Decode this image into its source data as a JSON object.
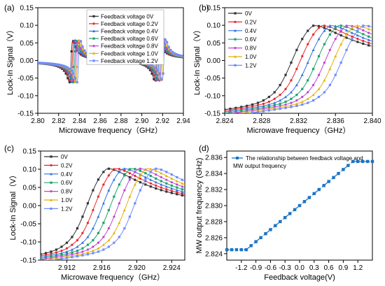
{
  "panel_labels": [
    "(a)",
    "(b)",
    "(c)",
    "(d)"
  ],
  "colors": [
    "#333333",
    "#e8262b",
    "#2f6fe0",
    "#21a36b",
    "#c044d6",
    "#e8b100",
    "#6e8cff"
  ],
  "chart_data": [
    {
      "type": "line",
      "id": "a",
      "title": "",
      "xlabel": "Microwave frequency（GHz）",
      "ylabel": "Lock-In Signal（V）",
      "xlim": [
        2.8,
        2.94
      ],
      "ylim": [
        -0.15,
        0.15
      ],
      "xticks": [
        "2.80",
        "2.82",
        "2.84",
        "2.86",
        "2.88",
        "2.90",
        "2.92",
        "2.94"
      ],
      "yticks": [
        "-0.15",
        "-0.10",
        "-0.05",
        "0.00",
        "0.05",
        "0.10",
        "0.15"
      ],
      "legend": "top-center",
      "base_resonances": [
        2.832,
        2.914
      ],
      "shift_per_step_ghz": 0.0012,
      "amplitude": 0.12,
      "series": [
        {
          "name": "Feedback voltage 0V"
        },
        {
          "name": "Feedback voltage 0.2V"
        },
        {
          "name": "Feedback voltage 0.4V"
        },
        {
          "name": "Feedback voltage 0.6V"
        },
        {
          "name": "Feedback voltage 0.8V"
        },
        {
          "name": "Feedback voltage 1.0V"
        },
        {
          "name": "Feedback voltage 1.2V"
        }
      ]
    },
    {
      "type": "line",
      "id": "b",
      "title": "",
      "xlabel": "Microwave frequency（GHz）",
      "ylabel": "Lock-In Signal（V）",
      "xlim": [
        2.824,
        2.84
      ],
      "ylim": [
        -0.15,
        0.15
      ],
      "xticks": [
        "2.824",
        "2.828",
        "2.832",
        "2.836",
        "2.840"
      ],
      "yticks": [
        "-0.15",
        "-0.10",
        "-0.05",
        "0.00",
        "0.05",
        "0.10",
        "0.15"
      ],
      "legend": "top-left",
      "center_0v": 2.8313,
      "shift_per_step_ghz": 0.0009,
      "amplitude": 0.122,
      "series": [
        {
          "name": "0V"
        },
        {
          "name": "0.2V"
        },
        {
          "name": "0.4V"
        },
        {
          "name": "0.6V"
        },
        {
          "name": "0.8V"
        },
        {
          "name": "1.0V"
        },
        {
          "name": "1.2V"
        }
      ]
    },
    {
      "type": "line",
      "id": "c",
      "title": "",
      "xlabel": "Microwave frequency（GHz）",
      "ylabel": "Lock-In Signal（V）",
      "xlim": [
        2.909,
        2.9255
      ],
      "ylim": [
        -0.15,
        0.15
      ],
      "xticks": [
        "2.912",
        "2.916",
        "2.920",
        "2.924"
      ],
      "yticks": [
        "-0.15",
        "-0.10",
        "-0.05",
        "0.00",
        "0.05",
        "0.10",
        "0.15"
      ],
      "legend": "top-left",
      "center_0v": 2.9143,
      "shift_per_step_ghz": 0.0009,
      "amplitude": 0.125,
      "series": [
        {
          "name": "0V"
        },
        {
          "name": "0.2V"
        },
        {
          "name": "0.4V"
        },
        {
          "name": "0.6V"
        },
        {
          "name": "0.8V"
        },
        {
          "name": "1.0V"
        },
        {
          "name": "1.2V"
        }
      ]
    },
    {
      "type": "line",
      "id": "d",
      "title": "",
      "xlabel": "Feedback voltage(V)",
      "ylabel": "MW output frequency (GHz)",
      "xlim": [
        -1.5,
        1.5
      ],
      "ylim": [
        2.8232,
        2.8368
      ],
      "xticks": [
        "-1.2",
        "-0.9",
        "-0.6",
        "-0.3",
        "0.0",
        "0.3",
        "0.6",
        "0.9",
        "1.2"
      ],
      "yticks": [
        "2.824",
        "2.826",
        "2.828",
        "2.830",
        "2.832",
        "2.834",
        "2.836"
      ],
      "legend": "top-left",
      "series": [
        {
          "name": "The relationship between feedback voltage and MW output frequency",
          "x": [
            -1.5,
            -1.4,
            -1.3,
            -1.2,
            -1.1,
            -1.0,
            -0.9,
            -0.8,
            -0.7,
            -0.6,
            -0.5,
            -0.4,
            -0.3,
            -0.2,
            -0.1,
            0.0,
            0.1,
            0.2,
            0.3,
            0.4,
            0.5,
            0.6,
            0.7,
            0.8,
            0.9,
            1.0,
            1.1,
            1.2,
            1.3,
            1.4,
            1.5
          ],
          "y": [
            2.8245,
            2.8245,
            2.8245,
            2.8245,
            2.8245,
            2.825,
            2.8255,
            2.826,
            2.8265,
            2.827,
            2.8275,
            2.828,
            2.8285,
            2.829,
            2.8295,
            2.83,
            2.8305,
            2.831,
            2.8315,
            2.832,
            2.8325,
            2.833,
            2.8335,
            2.834,
            2.8345,
            2.835,
            2.8355,
            2.8355,
            2.8355,
            2.8355,
            2.8355
          ]
        }
      ]
    }
  ]
}
